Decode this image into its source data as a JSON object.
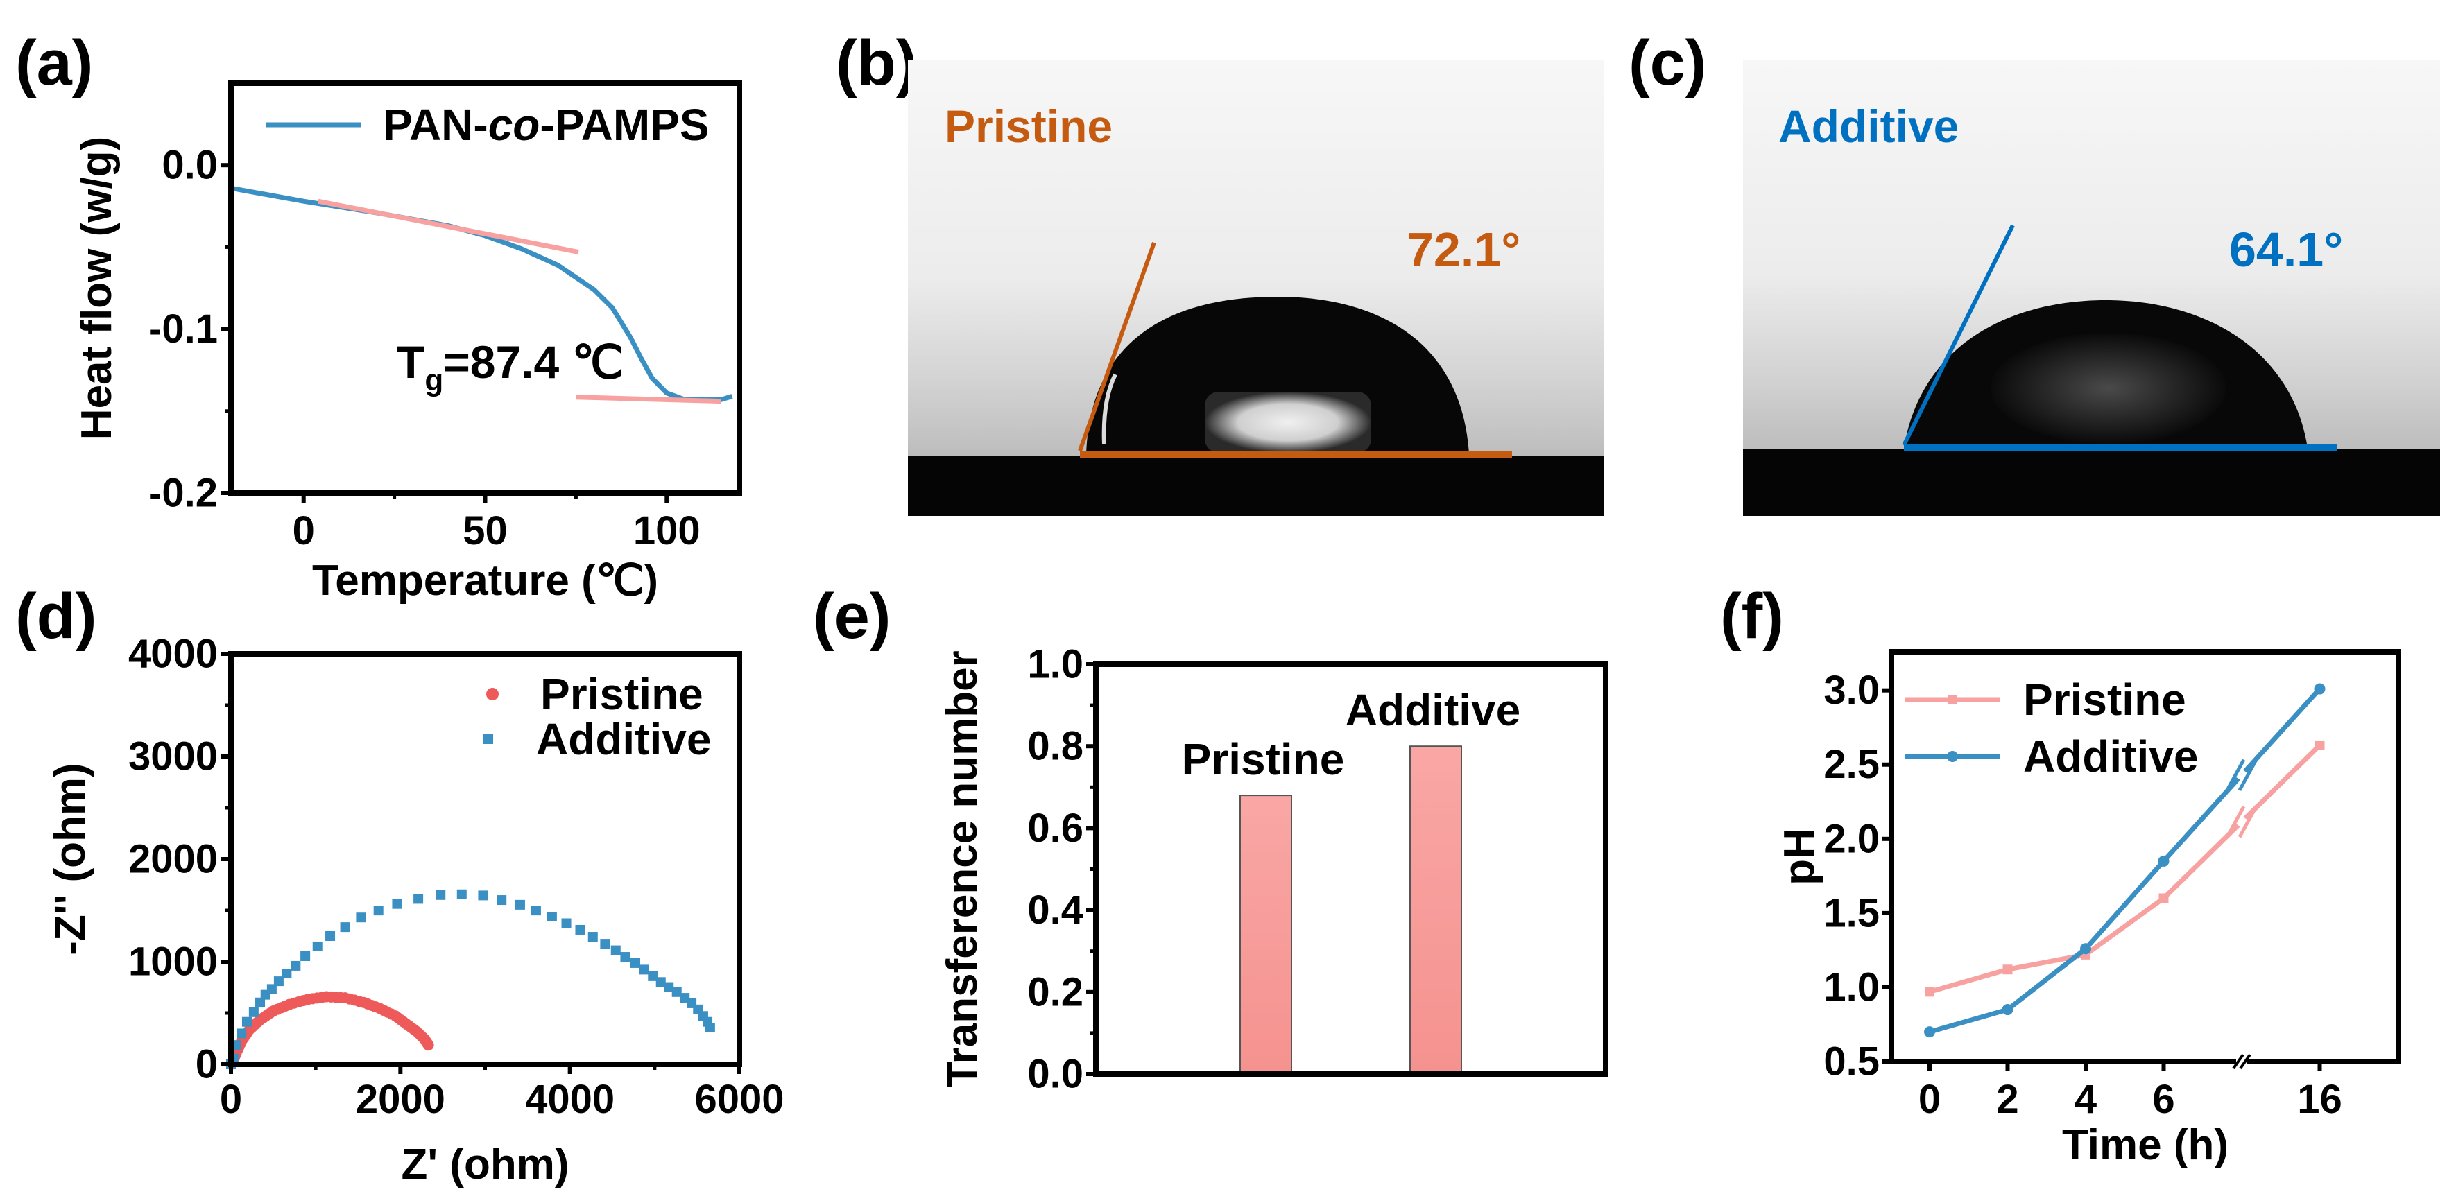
{
  "panels": {
    "a": "(a)",
    "b": "(b)",
    "c": "(c)",
    "d": "(d)",
    "e": "(e)",
    "f": "(f)"
  },
  "contact_angle": {
    "b": {
      "label": "Pristine",
      "angle": "72.1°",
      "color": "#c55a11"
    },
    "c": {
      "label": "Additive",
      "angle": "64.1°",
      "color": "#0070c0"
    }
  },
  "chart_data": [
    {
      "id": "a",
      "type": "line",
      "title": "",
      "xlabel": "Temperature (℃)",
      "ylabel": "Heat flow (w/g)",
      "xlim": [
        -20,
        120
      ],
      "ylim": [
        -0.2,
        0.05
      ],
      "xticks": [
        0,
        50,
        100
      ],
      "xtick_labels": [
        "0",
        "50",
        "100"
      ],
      "xminor": [
        25,
        75
      ],
      "yticks": [
        -0.2,
        -0.1,
        0.0
      ],
      "ytick_labels": [
        "-0.2",
        "-0.1",
        "0.0"
      ],
      "yminor": [
        -0.15,
        -0.05
      ],
      "legend": {
        "parts": [
          "PAN-",
          "co",
          "-PAMPS"
        ],
        "placement": "top-right"
      },
      "series": [
        {
          "name": "PAN-co-PAMPS",
          "color": "#3a8fc3",
          "points": [
            [
              -20,
              -0.014
            ],
            [
              0,
              -0.022
            ],
            [
              20,
              -0.029
            ],
            [
              40,
              -0.037
            ],
            [
              50,
              -0.043
            ],
            [
              60,
              -0.051
            ],
            [
              70,
              -0.061
            ],
            [
              80,
              -0.076
            ],
            [
              85,
              -0.087
            ],
            [
              90,
              -0.105
            ],
            [
              93,
              -0.118
            ],
            [
              96,
              -0.13
            ],
            [
              100,
              -0.139
            ],
            [
              105,
              -0.143
            ],
            [
              110,
              -0.143
            ],
            [
              115,
              -0.143
            ],
            [
              118,
              -0.141
            ]
          ]
        }
      ],
      "tangents": [
        {
          "color": "#f7a1a1",
          "points": [
            [
              4,
              -0.022
            ],
            [
              75.7,
              -0.053
            ]
          ]
        },
        {
          "color": "#f7a1a1",
          "points": [
            [
              75,
              -0.1415
            ],
            [
              115,
              -0.144
            ]
          ]
        }
      ],
      "annotation": {
        "main": "T",
        "sub": "g",
        "rest": "=87.4 ℃"
      }
    },
    {
      "id": "d",
      "type": "scatter",
      "title": "",
      "xlabel": "Z' (ohm)",
      "ylabel": "-Z'' (ohm)",
      "xlim": [
        0,
        6000
      ],
      "ylim": [
        0,
        4000
      ],
      "xticks": [
        0,
        2000,
        4000,
        6000
      ],
      "xtick_labels": [
        "0",
        "2000",
        "4000",
        "6000"
      ],
      "xminor": [
        1000,
        3000,
        5000
      ],
      "yticks": [
        0,
        1000,
        2000,
        3000,
        4000
      ],
      "ytick_labels": [
        "0",
        "1000",
        "2000",
        "3000",
        "4000"
      ],
      "yminor": [
        500,
        1500,
        2500,
        3500
      ],
      "legend_placement": "top-right",
      "series": [
        {
          "name": "Pristine",
          "color": "#ee5a5a",
          "marker": "circle",
          "points": [
            [
              0,
              0
            ],
            [
              19,
              19
            ],
            [
              63,
              113
            ],
            [
              125,
              226
            ],
            [
              219,
              339
            ],
            [
              344,
              433
            ],
            [
              501,
              520
            ],
            [
              689,
              584
            ],
            [
              908,
              633
            ],
            [
              1127,
              659
            ],
            [
              1347,
              648
            ],
            [
              1566,
              603
            ],
            [
              1754,
              546
            ],
            [
              1942,
              471
            ],
            [
              2067,
              395
            ],
            [
              2192,
              320
            ],
            [
              2286,
              245
            ],
            [
              2330,
              188
            ]
          ]
        },
        {
          "name": "Additive",
          "color": "#3a8fc3",
          "marker": "square",
          "points": [
            [
              0,
              0
            ],
            [
              31,
              56
            ],
            [
              63,
              188
            ],
            [
              125,
              301
            ],
            [
              188,
              414
            ],
            [
              269,
              508
            ],
            [
              344,
              603
            ],
            [
              407,
              678
            ],
            [
              482,
              734
            ],
            [
              564,
              810
            ],
            [
              658,
              885
            ],
            [
              764,
              960
            ],
            [
              877,
              1054
            ],
            [
              1021,
              1149
            ],
            [
              1171,
              1250
            ],
            [
              1347,
              1337
            ],
            [
              1534,
              1431
            ],
            [
              1741,
              1499
            ],
            [
              1960,
              1563
            ],
            [
              2211,
              1612
            ],
            [
              2474,
              1650
            ],
            [
              2724,
              1657
            ],
            [
              2975,
              1646
            ],
            [
              3194,
              1601
            ],
            [
              3413,
              1555
            ],
            [
              3601,
              1499
            ],
            [
              3789,
              1439
            ],
            [
              3958,
              1375
            ],
            [
              4121,
              1311
            ],
            [
              4271,
              1243
            ],
            [
              4415,
              1175
            ],
            [
              4541,
              1111
            ],
            [
              4653,
              1047
            ],
            [
              4772,
              987
            ],
            [
              4873,
              923
            ],
            [
              4979,
              859
            ],
            [
              5073,
              802
            ],
            [
              5167,
              753
            ],
            [
              5261,
              704
            ],
            [
              5355,
              648
            ],
            [
              5436,
              595
            ],
            [
              5511,
              535
            ],
            [
              5574,
              471
            ],
            [
              5624,
              414
            ],
            [
              5655,
              358
            ]
          ]
        }
      ]
    },
    {
      "id": "e",
      "type": "bar",
      "title": "",
      "xlabel": "",
      "ylabel": "Transference number",
      "ylim": [
        0,
        1.0
      ],
      "yticks": [
        0,
        0.2,
        0.4,
        0.6,
        0.8,
        1.0
      ],
      "ytick_labels": [
        "0.0",
        "0.2",
        "0.4",
        "0.6",
        "0.8",
        "1.0"
      ],
      "yminor": [
        0.1,
        0.3,
        0.5,
        0.7,
        0.9
      ],
      "categories": [
        "Pristine",
        "Additive"
      ],
      "values": [
        0.68,
        0.8
      ],
      "bar_color": "#f7a09e"
    },
    {
      "id": "f",
      "type": "line",
      "title": "",
      "xlabel": "Time (h)",
      "ylabel": "pH",
      "x": [
        0,
        2,
        4,
        6,
        16
      ],
      "xtick_labels": [
        "0",
        "2",
        "4",
        "6",
        "16"
      ],
      "x_break": [
        8,
        14
      ],
      "ylim": [
        0.5,
        3.26
      ],
      "yticks": [
        0.5,
        1.0,
        1.5,
        2.0,
        2.5,
        3.0
      ],
      "ytick_labels": [
        "0.5",
        "1.0",
        "1.5",
        "2.0",
        "2.5",
        "3.0"
      ],
      "legend_placement": "top-left",
      "series": [
        {
          "name": "Pristine",
          "color": "#f7a1a1",
          "marker": "square",
          "values": [
            0.97,
            1.12,
            1.22,
            1.6,
            2.63
          ]
        },
        {
          "name": "Additive",
          "color": "#3a8fc3",
          "marker": "circle",
          "values": [
            0.7,
            0.85,
            1.26,
            1.85,
            3.01
          ]
        }
      ]
    }
  ]
}
